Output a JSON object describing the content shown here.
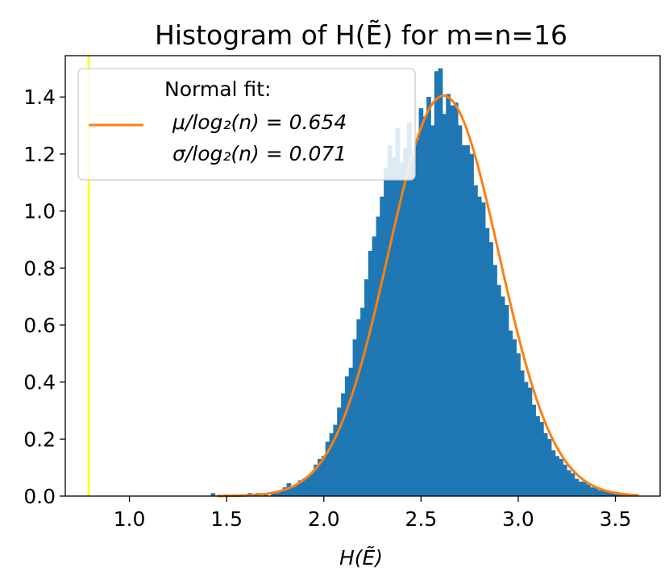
{
  "chart_data": {
    "type": "bar",
    "title": "Histogram of H(Ẽ) for m=n=16",
    "xlabel": "H(Ẽ)",
    "ylabel": "",
    "xlim": [
      0.67,
      3.73
    ],
    "ylim": [
      0,
      1.545
    ],
    "xticks": [
      "1.0",
      "1.5",
      "2.0",
      "2.5",
      "3.0",
      "3.5"
    ],
    "xtick_values": [
      1.0,
      1.5,
      2.0,
      2.5,
      3.0,
      3.5
    ],
    "yticks": [
      "0.0",
      "0.2",
      "0.4",
      "0.6",
      "0.8",
      "1.0",
      "1.2",
      "1.4"
    ],
    "ytick_values": [
      0.0,
      0.2,
      0.4,
      0.6,
      0.8,
      1.0,
      1.2,
      1.4
    ],
    "grid": false,
    "legend_position": "top-left",
    "vline": {
      "x": 0.79,
      "color": "#ffff00"
    },
    "bar_color": "#1f77b4",
    "fit_color": "#ff7f0e",
    "fit": {
      "name": "Normal fit:",
      "mu": 2.616,
      "sigma": 0.284
    },
    "legend": {
      "line1": "Normal fit:",
      "line2": "μ/log₂(n) = 0.654",
      "line3": "σ/log₂(n) = 0.071"
    },
    "hist": {
      "bin_width": 0.0222,
      "x": [
        1.43,
        1.5,
        1.56,
        1.62,
        1.66,
        1.7,
        1.74,
        1.76,
        1.78,
        1.8,
        1.82,
        1.84,
        1.86,
        1.88,
        1.9,
        1.92,
        1.94,
        1.96,
        1.98,
        2.0,
        2.02,
        2.04,
        2.06,
        2.08,
        2.1,
        2.12,
        2.14,
        2.16,
        2.18,
        2.2,
        2.22,
        2.24,
        2.26,
        2.28,
        2.3,
        2.32,
        2.34,
        2.36,
        2.38,
        2.4,
        2.42,
        2.44,
        2.46,
        2.48,
        2.5,
        2.52,
        2.54,
        2.56,
        2.58,
        2.6,
        2.62,
        2.64,
        2.66,
        2.68,
        2.7,
        2.72,
        2.74,
        2.76,
        2.78,
        2.8,
        2.82,
        2.84,
        2.86,
        2.88,
        2.9,
        2.92,
        2.94,
        2.96,
        2.98,
        3.0,
        3.02,
        3.04,
        3.06,
        3.08,
        3.1,
        3.12,
        3.14,
        3.16,
        3.18,
        3.2,
        3.22,
        3.24,
        3.26,
        3.28,
        3.3,
        3.32,
        3.34,
        3.36,
        3.38,
        3.4,
        3.42,
        3.44,
        3.46,
        3.48,
        3.5,
        3.52,
        3.54,
        3.56,
        3.58,
        3.6
      ],
      "values": [
        0.01,
        0.005,
        0.005,
        0.01,
        0.01,
        0.01,
        0.015,
        0.01,
        0.02,
        0.03,
        0.045,
        0.03,
        0.04,
        0.055,
        0.06,
        0.07,
        0.08,
        0.11,
        0.13,
        0.14,
        0.19,
        0.22,
        0.25,
        0.31,
        0.36,
        0.42,
        0.45,
        0.55,
        0.62,
        0.66,
        0.76,
        0.86,
        0.91,
        0.98,
        1.05,
        1.15,
        1.23,
        1.19,
        1.29,
        1.17,
        1.22,
        1.31,
        1.19,
        1.25,
        1.36,
        1.33,
        1.4,
        1.3,
        1.49,
        1.5,
        1.34,
        1.41,
        1.37,
        1.38,
        1.3,
        1.23,
        1.23,
        1.2,
        1.09,
        1.05,
        1.03,
        0.94,
        0.89,
        0.81,
        0.74,
        0.7,
        0.67,
        0.58,
        0.55,
        0.5,
        0.44,
        0.4,
        0.38,
        0.32,
        0.28,
        0.26,
        0.22,
        0.2,
        0.16,
        0.14,
        0.13,
        0.11,
        0.09,
        0.08,
        0.06,
        0.05,
        0.05,
        0.04,
        0.03,
        0.03,
        0.02,
        0.02,
        0.015,
        0.01,
        0.01,
        0.005,
        0.005,
        0.005,
        0.005,
        0.002
      ]
    }
  }
}
